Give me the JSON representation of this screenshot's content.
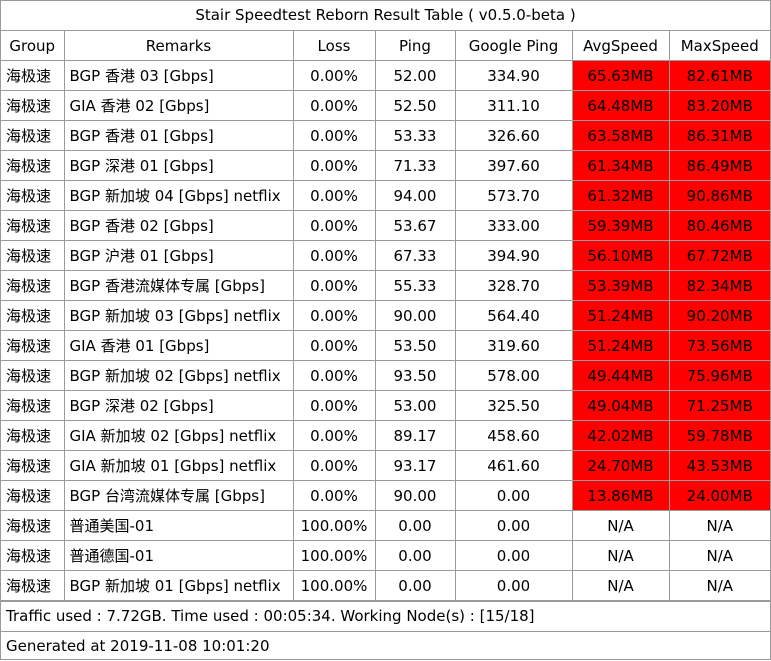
{
  "title": "Stair Speedtest Reborn Result Table ( v0.5.0-beta )",
  "columns": [
    "Group",
    "Remarks",
    "Loss",
    "Ping",
    "Google Ping",
    "AvgSpeed",
    "MaxSpeed"
  ],
  "rows": [
    {
      "group": "海极速",
      "remarks": "BGP 香港 03  [Gbps]",
      "loss": "0.00%",
      "ping": "52.00",
      "google_ping": "334.90",
      "avg": "65.63MB",
      "max": "82.61MB",
      "avg_hl": true,
      "max_hl": true
    },
    {
      "group": "海极速",
      "remarks": "GIA 香港 02  [Gbps]",
      "loss": "0.00%",
      "ping": "52.50",
      "google_ping": "311.10",
      "avg": "64.48MB",
      "max": "83.20MB",
      "avg_hl": true,
      "max_hl": true
    },
    {
      "group": "海极速",
      "remarks": "BGP 香港 01 [Gbps]",
      "loss": "0.00%",
      "ping": "53.33",
      "google_ping": "326.60",
      "avg": "63.58MB",
      "max": "86.31MB",
      "avg_hl": true,
      "max_hl": true
    },
    {
      "group": "海极速",
      "remarks": "BGP 深港 01 [Gbps]",
      "loss": "0.00%",
      "ping": "71.33",
      "google_ping": "397.60",
      "avg": "61.34MB",
      "max": "86.49MB",
      "avg_hl": true,
      "max_hl": true
    },
    {
      "group": "海极速",
      "remarks": "BGP 新加坡 04 [Gbps] netflix",
      "loss": "0.00%",
      "ping": "94.00",
      "google_ping": "573.70",
      "avg": "61.32MB",
      "max": "90.86MB",
      "avg_hl": true,
      "max_hl": true
    },
    {
      "group": "海极速",
      "remarks": "BGP 香港 02  [Gbps]",
      "loss": "0.00%",
      "ping": "53.67",
      "google_ping": "333.00",
      "avg": "59.39MB",
      "max": "80.46MB",
      "avg_hl": true,
      "max_hl": true
    },
    {
      "group": "海极速",
      "remarks": "BGP 沪港 01 [Gbps]",
      "loss": "0.00%",
      "ping": "67.33",
      "google_ping": "394.90",
      "avg": "56.10MB",
      "max": "67.72MB",
      "avg_hl": true,
      "max_hl": true
    },
    {
      "group": "海极速",
      "remarks": "BGP 香港流媒体专属 [Gbps]",
      "loss": "0.00%",
      "ping": "55.33",
      "google_ping": "328.70",
      "avg": "53.39MB",
      "max": "82.34MB",
      "avg_hl": true,
      "max_hl": true
    },
    {
      "group": "海极速",
      "remarks": "BGP 新加坡 03 [Gbps] netflix",
      "loss": "0.00%",
      "ping": "90.00",
      "google_ping": "564.40",
      "avg": "51.24MB",
      "max": "90.20MB",
      "avg_hl": true,
      "max_hl": true
    },
    {
      "group": "海极速",
      "remarks": "GIA 香港 01 [Gbps]",
      "loss": "0.00%",
      "ping": "53.50",
      "google_ping": "319.60",
      "avg": "51.24MB",
      "max": "73.56MB",
      "avg_hl": true,
      "max_hl": true
    },
    {
      "group": "海极速",
      "remarks": "BGP 新加坡 02 [Gbps] netflix",
      "loss": "0.00%",
      "ping": "93.50",
      "google_ping": "578.00",
      "avg": "49.44MB",
      "max": "75.96MB",
      "avg_hl": true,
      "max_hl": true
    },
    {
      "group": "海极速",
      "remarks": "BGP 深港 02 [Gbps]",
      "loss": "0.00%",
      "ping": "53.00",
      "google_ping": "325.50",
      "avg": "49.04MB",
      "max": "71.25MB",
      "avg_hl": true,
      "max_hl": true
    },
    {
      "group": "海极速",
      "remarks": "GIA 新加坡 02 [Gbps] netflix",
      "loss": "0.00%",
      "ping": "89.17",
      "google_ping": "458.60",
      "avg": "42.02MB",
      "max": "59.78MB",
      "avg_hl": true,
      "max_hl": true
    },
    {
      "group": "海极速",
      "remarks": "GIA 新加坡 01 [Gbps] netflix",
      "loss": "0.00%",
      "ping": "93.17",
      "google_ping": "461.60",
      "avg": "24.70MB",
      "max": "43.53MB",
      "avg_hl": true,
      "max_hl": true
    },
    {
      "group": "海极速",
      "remarks": "BGP 台湾流媒体专属  [Gbps]",
      "loss": "0.00%",
      "ping": "90.00",
      "google_ping": "0.00",
      "avg": "13.86MB",
      "max": "24.00MB",
      "avg_hl": true,
      "max_hl": true
    },
    {
      "group": "海极速",
      "remarks": "普通美国-01",
      "loss": "100.00%",
      "ping": "0.00",
      "google_ping": "0.00",
      "avg": "N/A",
      "max": "N/A",
      "avg_hl": false,
      "max_hl": false
    },
    {
      "group": "海极速",
      "remarks": "普通德国-01",
      "loss": "100.00%",
      "ping": "0.00",
      "google_ping": "0.00",
      "avg": "N/A",
      "max": "N/A",
      "avg_hl": false,
      "max_hl": false
    },
    {
      "group": "海极速",
      "remarks": "BGP 新加坡 01 [Gbps] netflix",
      "loss": "100.00%",
      "ping": "0.00",
      "google_ping": "0.00",
      "avg": "N/A",
      "max": "N/A",
      "avg_hl": false,
      "max_hl": false
    }
  ],
  "footer": {
    "traffic": "Traffic used : 7.72GB. Time used : 00:05:34. Working Node(s) : [15/18]",
    "generated": "Generated at 2019-11-08 10:01:20"
  },
  "colors": {
    "speed_highlight": "#ff0000",
    "border": "#9a9a9a"
  }
}
